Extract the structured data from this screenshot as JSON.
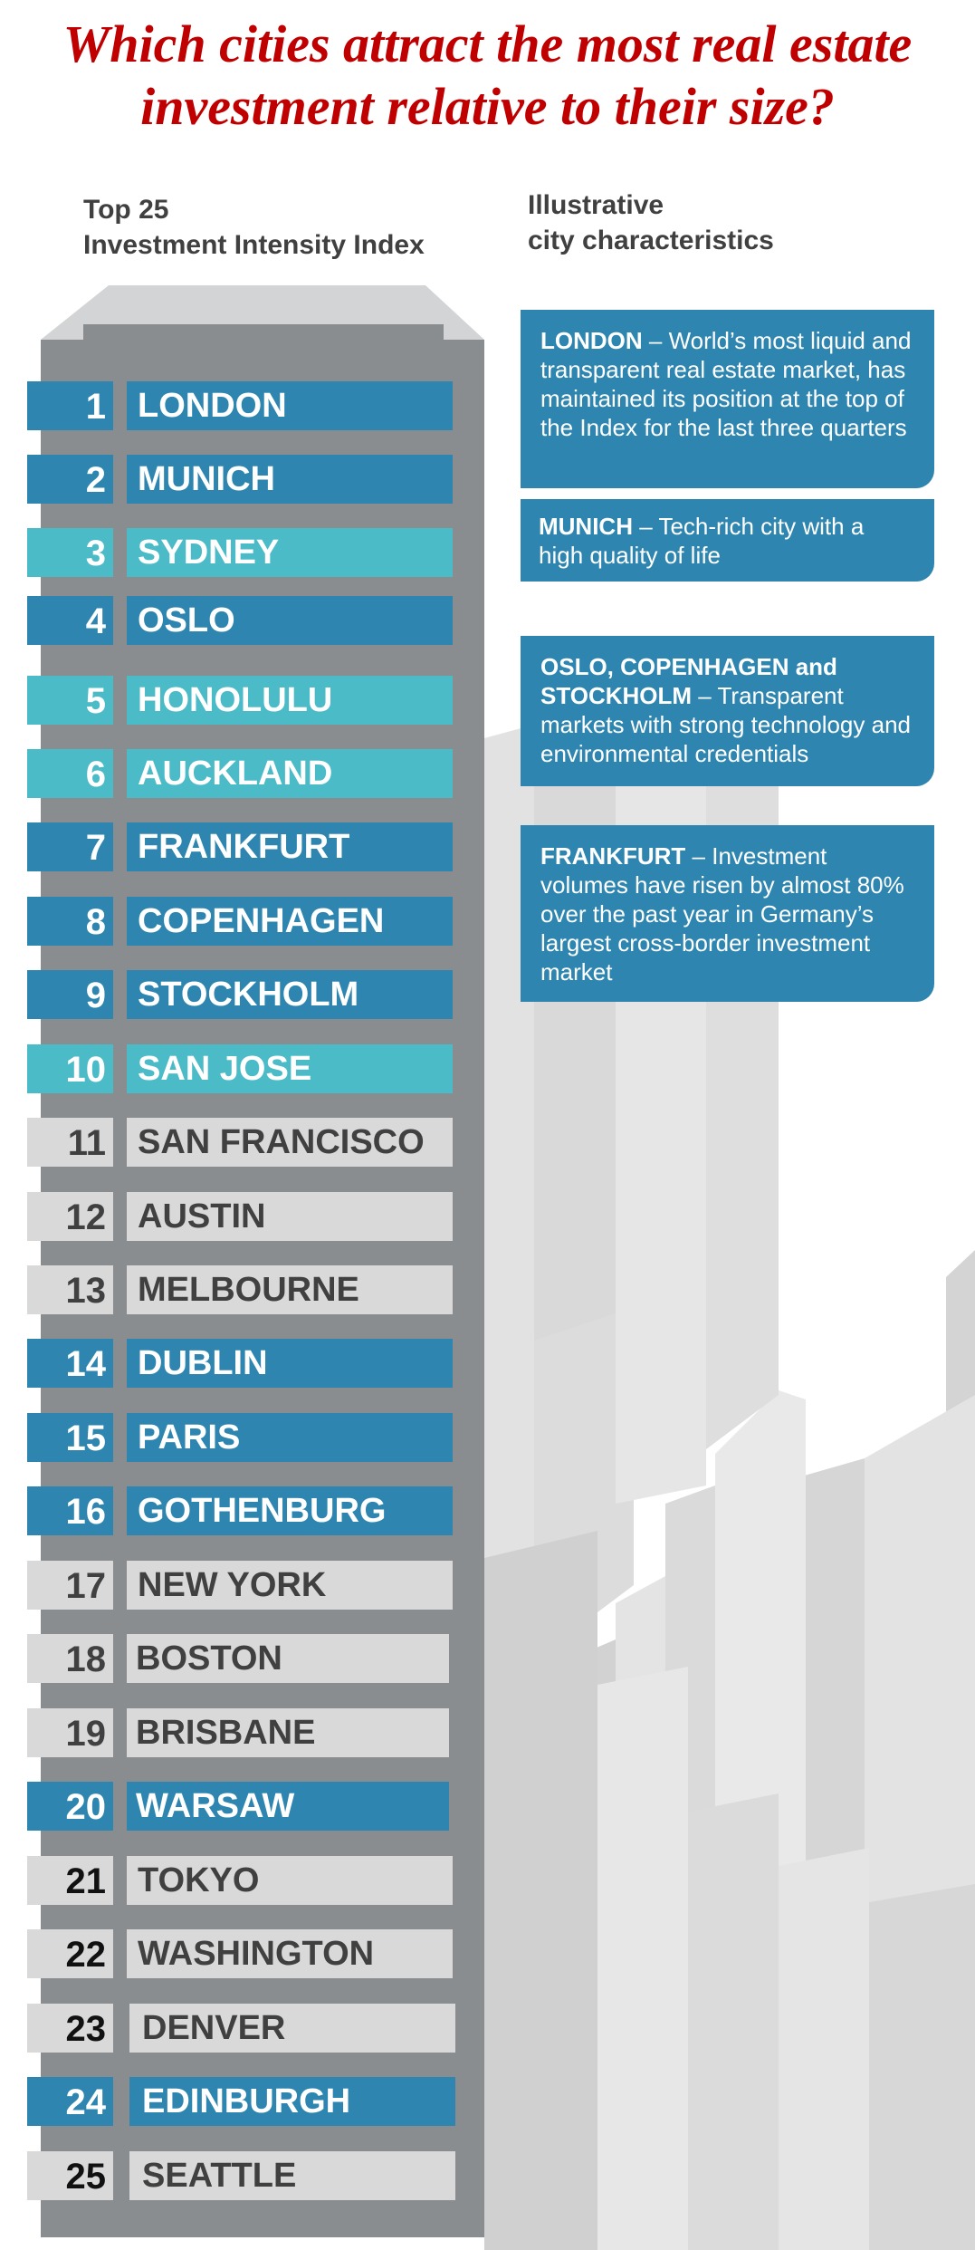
{
  "title": {
    "line1": "Which cities attract the most real estate",
    "line2": "investment relative to their size?"
  },
  "column_headers": {
    "left_line1": "Top 25",
    "left_line2": "Investment Intensity Index",
    "right_line1": "Illustrative",
    "right_line2": "city characteristics"
  },
  "colors": {
    "title": "#c00000",
    "dark_blue": "#2e86b0",
    "light_blue": "#4bbbc8",
    "grey_box": "#d9d9d9",
    "tower": "#8a8d90"
  },
  "rankings": [
    {
      "rank": "1",
      "city": "LONDON"
    },
    {
      "rank": "2",
      "city": "MUNICH"
    },
    {
      "rank": "3",
      "city": "SYDNEY"
    },
    {
      "rank": "4",
      "city": "OSLO"
    },
    {
      "rank": "5",
      "city": "HONOLULU"
    },
    {
      "rank": "6",
      "city": "AUCKLAND"
    },
    {
      "rank": "7",
      "city": "FRANKFURT"
    },
    {
      "rank": "8",
      "city": "COPENHAGEN"
    },
    {
      "rank": "9",
      "city": "STOCKHOLM"
    },
    {
      "rank": "10",
      "city": "SAN JOSE"
    },
    {
      "rank": "11",
      "city": "SAN FRANCISCO"
    },
    {
      "rank": "12",
      "city": "AUSTIN"
    },
    {
      "rank": "13",
      "city": "MELBOURNE"
    },
    {
      "rank": "14",
      "city": "DUBLIN"
    },
    {
      "rank": "15",
      "city": "PARIS"
    },
    {
      "rank": "16",
      "city": "GOTHENBURG"
    },
    {
      "rank": "17",
      "city": "NEW YORK"
    },
    {
      "rank": "18",
      "city": "BOSTON"
    },
    {
      "rank": "19",
      "city": "BRISBANE"
    },
    {
      "rank": "20",
      "city": "WARSAW"
    },
    {
      "rank": "21",
      "city": "TOKYO"
    },
    {
      "rank": "22",
      "city": "WASHINGTON"
    },
    {
      "rank": "23",
      "city": "DENVER"
    },
    {
      "rank": "24",
      "city": "EDINBURGH"
    },
    {
      "rank": "25",
      "city": "SEATTLE"
    }
  ],
  "callouts": [
    {
      "bold": "LONDON",
      "text": " – World’s most liquid and transparent real estate market, has maintained its position at the top of the Index for the last three quarters"
    },
    {
      "bold": "MUNICH",
      "text": " – Tech-rich city with a high quality of life"
    },
    {
      "bold": "OSLO, COPENHAGEN and STOCKHOLM",
      "text": " –  Transparent markets with strong technology and environmental credentials"
    },
    {
      "bold": "FRANKFURT",
      "text": " – Investment volumes have risen by almost 80% over the past year in Germany’s largest cross-border investment market"
    }
  ]
}
